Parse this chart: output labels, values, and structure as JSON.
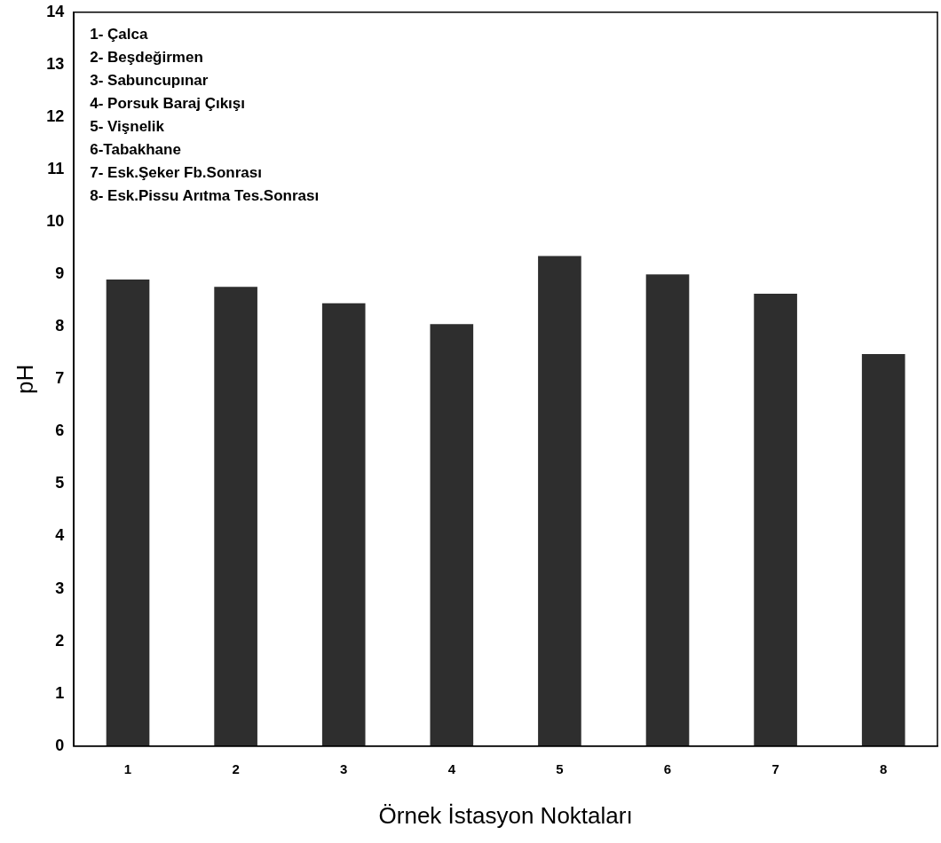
{
  "chart_data": {
    "type": "bar",
    "xlabel": "Örnek İstasyon Noktaları",
    "ylabel": "pH",
    "categories": [
      "1",
      "2",
      "3",
      "4",
      "5",
      "6",
      "7",
      "8"
    ],
    "values": [
      8.9,
      8.76,
      8.45,
      8.05,
      9.35,
      9.0,
      8.63,
      7.48
    ],
    "color": "#2e2e2e",
    "ylim": [
      0,
      14
    ],
    "yticks": [
      0,
      1,
      2,
      3,
      4,
      5,
      6,
      7,
      8,
      9,
      10,
      11,
      12,
      13,
      14
    ],
    "grid": false,
    "legend": false,
    "annotations": [
      "1- Çalca",
      "2- Beşdeğirmen",
      "3- Sabuncupınar",
      "4- Porsuk Baraj Çıkışı",
      "5- Vişnelik",
      "6-Tabakhane",
      "7- Esk.Şeker Fb.Sonrası",
      "8- Esk.Pissu Arıtma Tes.Sonrası"
    ]
  }
}
